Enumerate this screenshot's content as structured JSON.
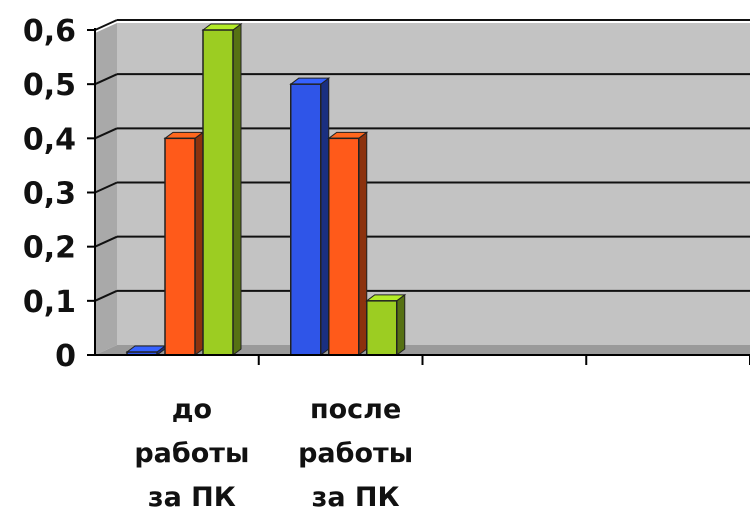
{
  "chart_data": {
    "type": "bar",
    "categories": [
      [
        "до",
        "работы",
        "за ПК"
      ],
      [
        "после",
        "работы",
        "за ПК"
      ],
      [
        "",
        "",
        ""
      ],
      [
        "",
        "",
        ""
      ]
    ],
    "series": [
      {
        "color": "#2f55e8",
        "values": [
          0,
          0.5,
          null,
          null
        ]
      },
      {
        "color": "#ff5a1a",
        "values": [
          0.4,
          0.4,
          null,
          null
        ]
      },
      {
        "color": "#9ccd22",
        "values": [
          0.6,
          0.1,
          null,
          null
        ]
      }
    ],
    "y_ticks": [
      "0",
      "0,1",
      "0,2",
      "0,3",
      "0,4",
      "0,5",
      "0,6"
    ],
    "ylim": [
      0,
      0.6
    ],
    "grid": true,
    "legend": "none",
    "style": "3d-clustered-column",
    "wall_color": "#c3c3c3"
  }
}
